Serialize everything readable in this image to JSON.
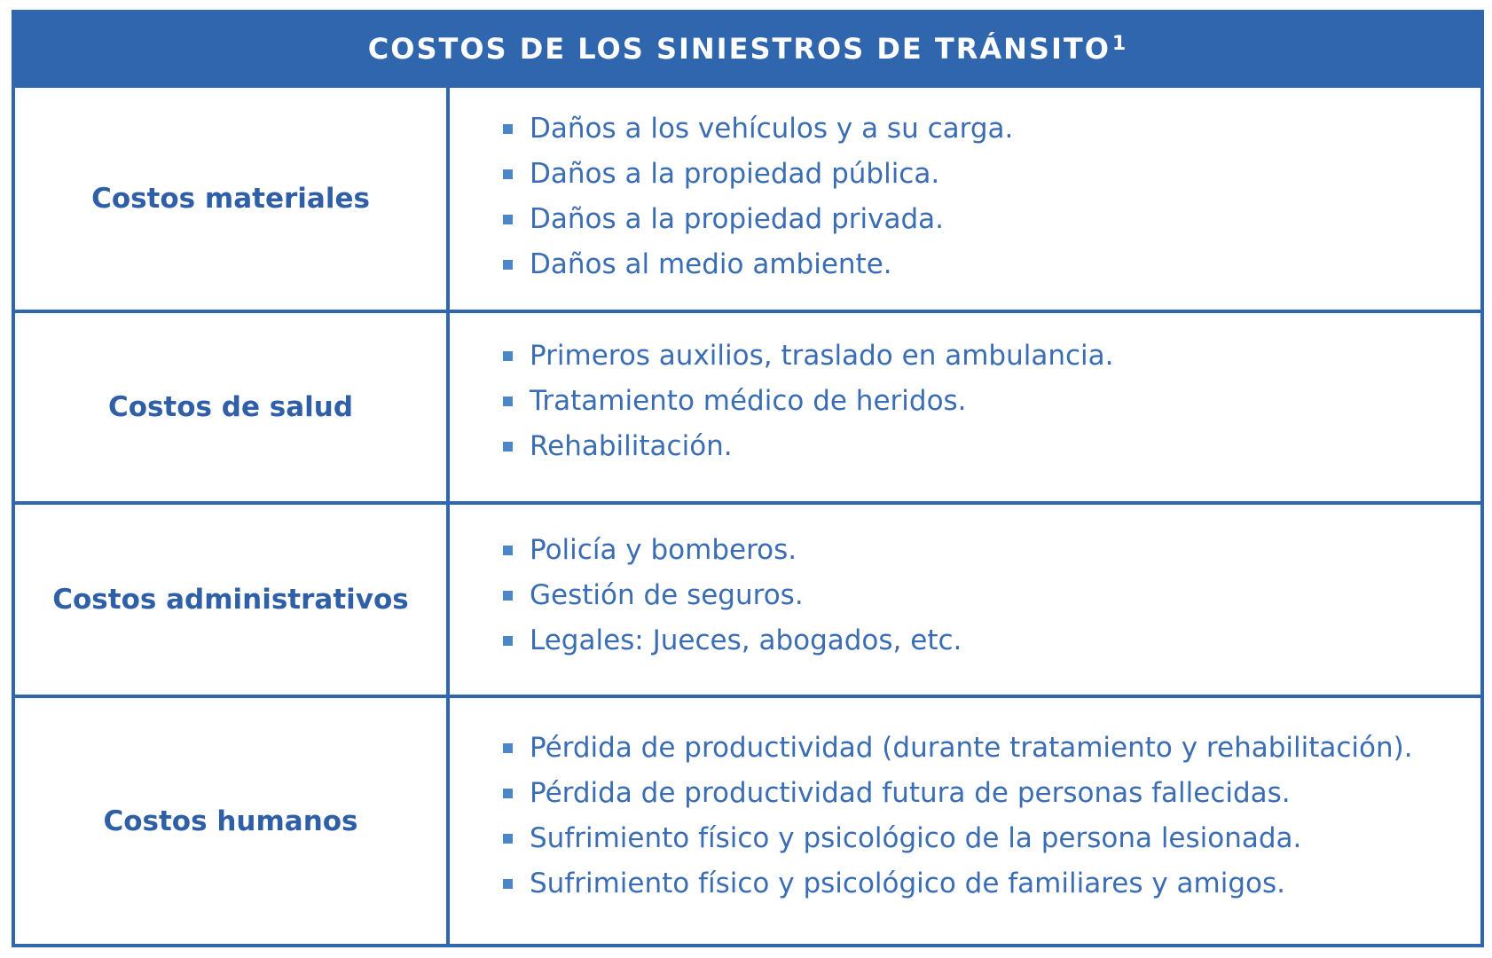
{
  "title": {
    "text": "COSTOS DE LOS SINIESTROS DE TRÁNSITO",
    "superscript": "1"
  },
  "rows": [
    {
      "label": "Costos materiales",
      "items": [
        "Daños a los vehículos y a su carga.",
        "Daños a la propiedad pública.",
        "Daños a la propiedad privada.",
        "Daños al medio ambiente."
      ]
    },
    {
      "label": "Costos de salud",
      "items": [
        "Primeros auxilios, traslado en ambulancia.",
        "Tratamiento médico de heridos.",
        "Rehabilitación."
      ]
    },
    {
      "label": "Costos administrativos",
      "items": [
        "Policía y bomberos.",
        "Gestión de seguros.",
        "Legales: Jueces, abogados, etc."
      ]
    },
    {
      "label": "Costos humanos",
      "items": [
        "Pérdida de productividad (durante tratamiento y rehabilitación).",
        "Pérdida de productividad futura de personas fallecidas.",
        "Sufrimiento físico y psicológico de la persona lesionada.",
        "Sufrimiento físico y psicológico de familiares y amigos."
      ]
    }
  ],
  "colors": {
    "primary_blue": "#2f66ae",
    "label_text": "#2f5fa6",
    "item_text": "#3a6db4",
    "bullet": "#4b86c6"
  }
}
